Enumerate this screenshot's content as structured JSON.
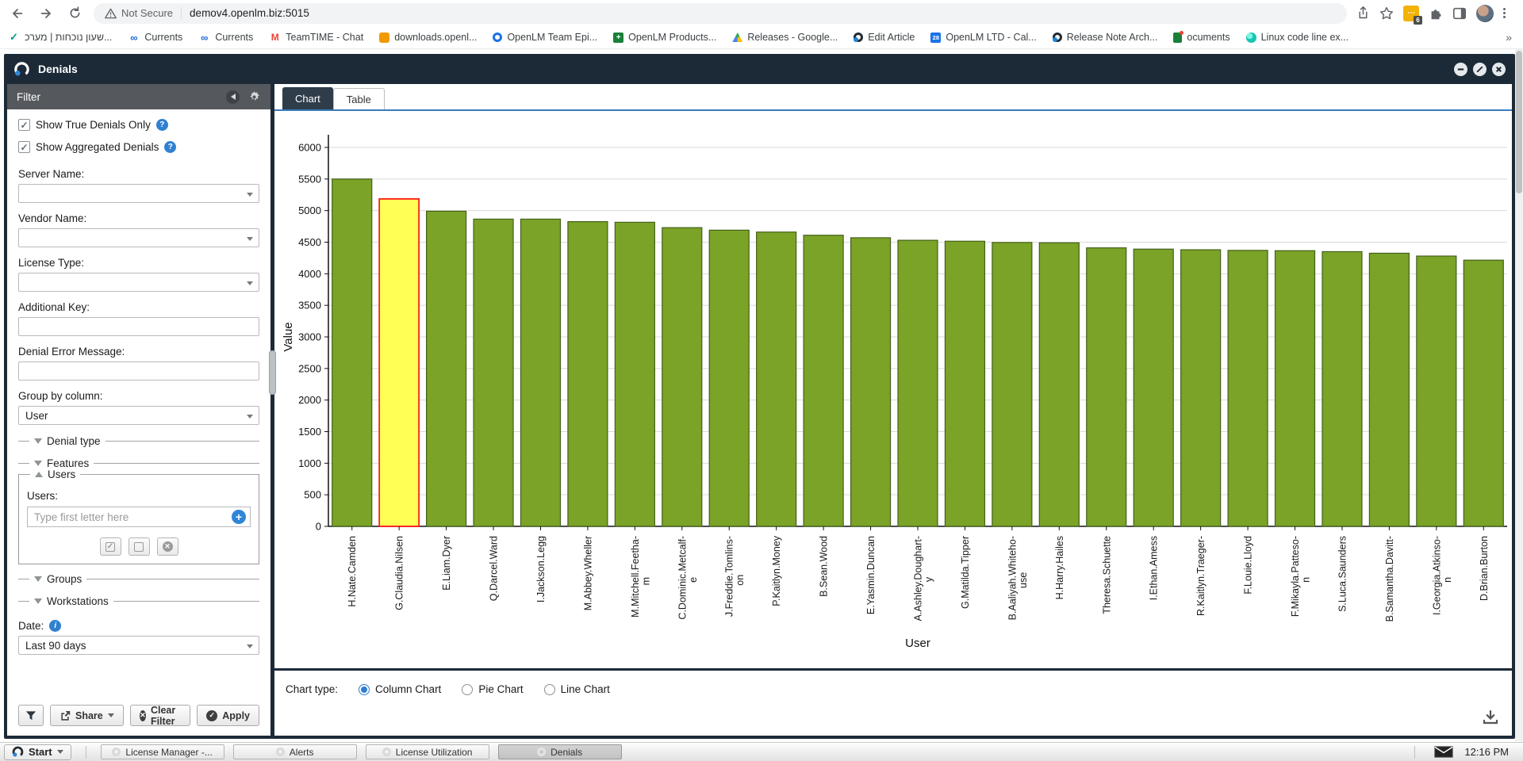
{
  "browser": {
    "security_label": "Not Secure",
    "url": "demov4.openlm.biz:5015",
    "extension_badge": "6",
    "overflow_chevron": "»",
    "bookmarks": [
      {
        "icon": "check-icon",
        "label": "שעון נוכחות | מערכ..."
      },
      {
        "icon": "currents-icon",
        "label": "Currents"
      },
      {
        "icon": "currents-icon",
        "label": "Currents"
      },
      {
        "icon": "gmail-icon",
        "label": "TeamTIME - Chat"
      },
      {
        "icon": "downloads-icon",
        "label": "downloads.openl..."
      },
      {
        "icon": "openlm-blue-icon",
        "label": "OpenLM Team Epi..."
      },
      {
        "icon": "products-icon",
        "label": "OpenLM Products..."
      },
      {
        "icon": "drive-icon",
        "label": "Releases - Google..."
      },
      {
        "icon": "openlm-logo-icon",
        "label": "Edit Article"
      },
      {
        "icon": "calendar28-icon",
        "label": "OpenLM LTD - Cal..."
      },
      {
        "icon": "openlm-logo-icon",
        "label": "Release Note Arch..."
      },
      {
        "icon": "docs-icon",
        "label": "ocuments"
      },
      {
        "icon": "linux-icon",
        "label": "Linux code line ex..."
      }
    ]
  },
  "window": {
    "title": "Denials"
  },
  "filter": {
    "title": "Filter",
    "show_true_label": "Show True Denials Only",
    "show_agg_label": "Show Aggregated Denials",
    "server_label": "Server Name:",
    "vendor_label": "Vendor Name:",
    "license_label": "License Type:",
    "addkey_label": "Additional Key:",
    "denialmsg_label": "Denial Error Message:",
    "groupby_label": "Group by column:",
    "groupby_value": "User",
    "sections": {
      "denial_type": "Denial type",
      "features": "Features",
      "users": "Users",
      "groups": "Groups",
      "workstations": "Workstations"
    },
    "users_label": "Users:",
    "users_placeholder": "Type first letter here",
    "date_label": "Date:",
    "date_value": "Last 90 days",
    "share_label": "Share",
    "clear_label": "Clear Filter",
    "apply_label": "Apply"
  },
  "main": {
    "tabs": [
      {
        "label": "Chart",
        "active": true
      },
      {
        "label": "Table",
        "active": false
      }
    ],
    "chart_type_label": "Chart type:",
    "chart_types": [
      {
        "label": "Column Chart",
        "selected": true
      },
      {
        "label": "Pie Chart",
        "selected": false
      },
      {
        "label": "Line Chart",
        "selected": false
      }
    ]
  },
  "chart_data": {
    "type": "bar",
    "title": "",
    "xlabel": "User",
    "ylabel": "Value",
    "ylim": [
      0,
      6000
    ],
    "ytick_step": 500,
    "grid": true,
    "categories": [
      "H.Nate.Camden",
      "G.Claudia.Nilsen",
      "E.Liam.Dyer",
      "Q.Darcel.Ward",
      "I.Jackson.Legg",
      "M.Abbey.Wheller",
      "M.Mitchell.Feetham",
      "C.Dominic.Metcalfe",
      "J.Freddie.Tomlinson",
      "P.Kaitlyn.Money",
      "B.Sean.Wood",
      "E.Yasmin.Duncan",
      "A.Ashley.Dougharty",
      "G.Matilda.Tipper",
      "B.Aaliyah.Whitehouse",
      "H.Harry.Hailes",
      "Theresa.Schuette",
      "I.Ethan.Amess",
      "R.Kaitlyn.Traeger",
      "F.Louie.Lloyd",
      "F.Mikayla.Patteson",
      "S.Luca.Saunders",
      "B.Samantha.Davitt",
      "I.Georgia.Atkinson",
      "D.Brian.Burton"
    ],
    "category_label_lines": [
      [
        "H.Nate.Camden"
      ],
      [
        "G.Claudia.Nilsen"
      ],
      [
        "E.Liam.Dyer"
      ],
      [
        "Q.Darcel.Ward"
      ],
      [
        "I.Jackson.Legg"
      ],
      [
        "M.Abbey.Wheller"
      ],
      [
        "M.Mitchell.Feetha-",
        "m"
      ],
      [
        "C.Dominic.Metcalf-",
        "e"
      ],
      [
        "J.Freddie.Tomlins-",
        "on"
      ],
      [
        "P.Kaitlyn.Money"
      ],
      [
        "B.Sean.Wood"
      ],
      [
        "E.Yasmin.Duncan"
      ],
      [
        "A.Ashley.Doughart-",
        "y"
      ],
      [
        "G.Matilda.Tipper"
      ],
      [
        "B.Aaliyah.Whiteho-",
        "use"
      ],
      [
        "H.Harry.Hailes"
      ],
      [
        "Theresa.Schuette"
      ],
      [
        "I.Ethan.Amess"
      ],
      [
        "R.Kaitlyn.Traeger-"
      ],
      [
        "F.Louie.Lloyd"
      ],
      [
        "F.Mikayla.Patteso-",
        "n"
      ],
      [
        "S.Luca.Saunders"
      ],
      [
        "B.Samantha.Davitt-"
      ],
      [
        "I.Georgia.Atkinso-",
        "n"
      ],
      [
        "D.Brian.Burton"
      ]
    ],
    "values": [
      5500,
      5185,
      4990,
      4865,
      4865,
      4825,
      4815,
      4730,
      4690,
      4660,
      4610,
      4570,
      4530,
      4515,
      4495,
      4490,
      4410,
      4390,
      4380,
      4370,
      4365,
      4350,
      4325,
      4280,
      4215
    ],
    "highlight_index": 1,
    "colors": {
      "bar": "#7aa327",
      "bar_border": "#44611a",
      "highlight": "#ffff55",
      "highlight_border": "#ff1a1a",
      "grid": "#d9d9d9",
      "axis": "#111111"
    },
    "legend_position": "none"
  },
  "taskbar": {
    "start_label": "Start",
    "tasks": [
      {
        "icon": "app-circle-icon",
        "label": "License Manager -...",
        "active": false
      },
      {
        "icon": "app-circle-icon",
        "label": "Alerts",
        "active": false
      },
      {
        "icon": "app-circle-icon",
        "label": "License Utilization",
        "active": false
      },
      {
        "icon": "app-circle-icon",
        "label": "Denials",
        "active": true
      }
    ],
    "time": "12:16 PM"
  },
  "theme_colors": {
    "window_frame": "#1c2a38",
    "filter_header": "#55585c",
    "tab_active": "#2f3d4b",
    "tab_underline": "#3a7cbd",
    "accent_blue": "#2f86d6"
  }
}
